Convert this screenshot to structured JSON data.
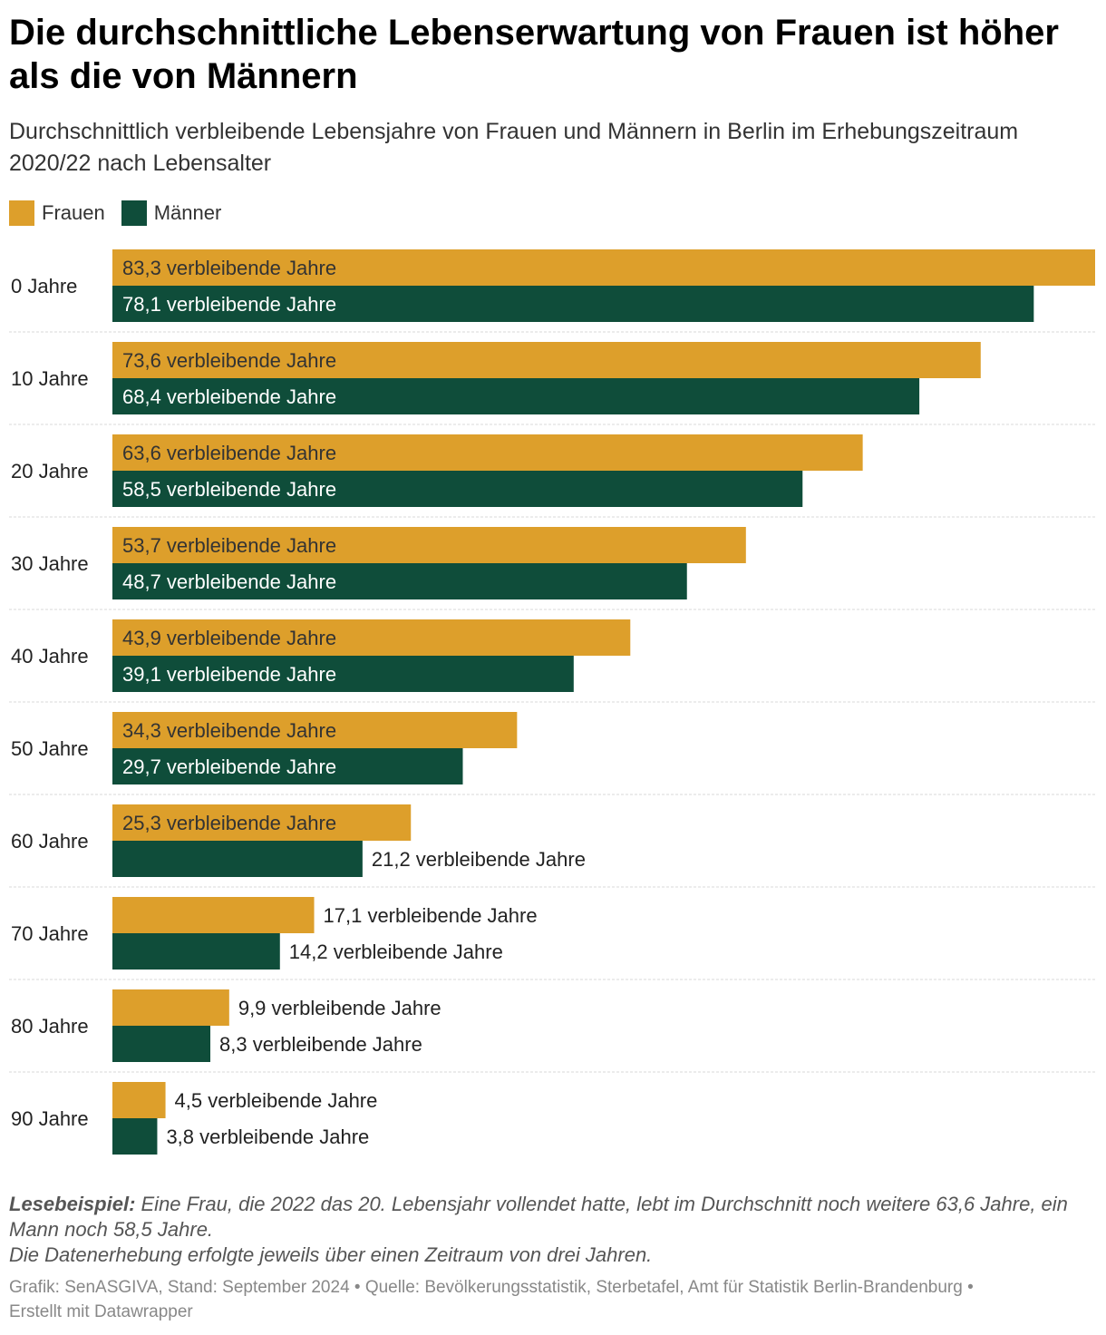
{
  "title": "Die durchschnittliche Lebenserwartung von Frauen ist höher als die von Männern",
  "subtitle": "Durchschnittlich verbleibende Lebensjahre von Frauen und Männern in Berlin im Erhebungszeitraum 2020/22 nach Lebensalter",
  "legend": [
    {
      "label": "Frauen",
      "color": "#dd9f2b"
    },
    {
      "label": "Männer",
      "color": "#0f4d3a"
    }
  ],
  "chart_data": {
    "type": "bar",
    "orientation": "horizontal",
    "categories": [
      "0 Jahre",
      "10 Jahre",
      "20 Jahre",
      "30 Jahre",
      "40 Jahre",
      "50 Jahre",
      "60 Jahre",
      "70 Jahre",
      "80 Jahre",
      "90 Jahre"
    ],
    "series": [
      {
        "name": "Frauen",
        "color": "#dd9f2b",
        "values": [
          83.3,
          73.6,
          63.6,
          53.7,
          43.9,
          34.3,
          25.3,
          17.1,
          9.9,
          4.5
        ],
        "labels": [
          "83,3 verbleibende Jahre",
          "73,6 verbleibende Jahre",
          "63,6 verbleibende Jahre",
          "53,7 verbleibende Jahre",
          "43,9 verbleibende Jahre",
          "34,3 verbleibende Jahre",
          "25,3 verbleibende Jahre",
          "17,1 verbleibende Jahre",
          "9,9 verbleibende Jahre",
          "4,5 verbleibende Jahre"
        ]
      },
      {
        "name": "Männer",
        "color": "#0f4d3a",
        "values": [
          78.1,
          68.4,
          58.5,
          48.7,
          39.1,
          29.7,
          21.2,
          14.2,
          8.3,
          3.8
        ],
        "labels": [
          "78,1 verbleibende Jahre",
          "68,4 verbleibende Jahre",
          "58,5 verbleibende Jahre",
          "48,7 verbleibende Jahre",
          "39,1 verbleibende Jahre",
          "29,7 verbleibende Jahre",
          "21,2 verbleibende Jahre",
          "14,2 verbleibende Jahre",
          "8,3 verbleibende Jahre",
          "3,8 verbleibende Jahre"
        ]
      }
    ],
    "xlim": [
      0,
      83.3
    ],
    "grid": false
  },
  "notes": {
    "example_label": "Lesebeispiel:",
    "example_text": " Eine Frau, die 2022 das 20. Lebensjahr vollendet hatte, lebt im Durchschnitt noch weitere 63,6 Jahre, ein Mann noch 58,5 Jahre.",
    "method_text": "Die Datenerhebung erfolgte jeweils über einen Zeitraum von drei Jahren."
  },
  "footer": "Grafik: SenASGIVA, Stand: September 2024 • Quelle: Bevölkerungsstatistik, Sterbetafel, Amt für Statistik Berlin-Brandenburg • Erstellt mit Datawrapper"
}
